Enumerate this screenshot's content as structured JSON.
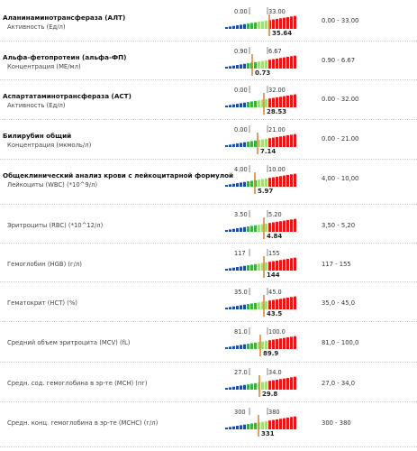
{
  "colors": {
    "low": "#1f4e9b",
    "normal": "#3fae3f",
    "normal_light": "#a7dc7a",
    "high": "#e01818",
    "marker": "#d9893a"
  },
  "rows": [
    {
      "name": "Аланинаминотрансфераза (АЛТ)",
      "label": "Активность (Ед/л)",
      "low": "0.00",
      "high": "33.00",
      "value": "35.64",
      "range": "0.00 - 33.00",
      "fraction": 0.6
    },
    {
      "name": "Альфа-фетопротеин (альфа-ФП)",
      "label": "Концентрация (МЕ/мл)",
      "low": "0.90",
      "high": "6.67",
      "value": "0.73",
      "range": "0.90 - 6.67",
      "fraction": 0.36
    },
    {
      "name": "Аспартатаминотрансфераза (АСТ)",
      "label": "Активность (Ед/л)",
      "low": "0.00",
      "high": "32.00",
      "value": "28.53",
      "range": "0.00 - 32.00",
      "fraction": 0.52
    },
    {
      "name": "Билирубин общий",
      "label": "Концентрация (мкмоль/л)",
      "low": "0.00",
      "high": "21.00",
      "value": "7.14",
      "range": "0.00 - 21.00",
      "fraction": 0.44
    },
    {
      "name": "Общеклинический анализ крови с лейкоцитарной формулой",
      "label": "Лейкоциты (WBC) (*10^9/л)",
      "low": "4.00",
      "high": "10.00",
      "value": "5.97",
      "range": "4,00 - 10,00",
      "fraction": 0.4
    },
    {
      "name": "",
      "label": "Эритроциты (RBC) (*10^12/л)",
      "low": "3.50",
      "high": "5.20",
      "value": "4.84",
      "range": "3,50 - 5,20",
      "fraction": 0.53
    },
    {
      "name": "",
      "label": "Гемоглобин (HGB) (г/л)",
      "low": "117",
      "high": "155",
      "value": "144",
      "range": "117 - 155",
      "fraction": 0.52
    },
    {
      "name": "",
      "label": "Гематокрит (HCT) (%)",
      "low": "35.0",
      "high": "45.0",
      "value": "43.5",
      "range": "35,0 - 45,0",
      "fraction": 0.53
    },
    {
      "name": "",
      "label": "Средний объем эритроцита (MCV) (fL)",
      "low": "81.0",
      "high": "100.0",
      "value": "89.9",
      "range": "81,0 - 100,0",
      "fraction": 0.48
    },
    {
      "name": "",
      "label": "Средн. сод. гемоглобина в эр-те (MCH) (пг)",
      "low": "27.0",
      "high": "34.0",
      "value": "29.8",
      "range": "27,0 - 34,0",
      "fraction": 0.46
    },
    {
      "name": "",
      "label": "Средн. конц. гемоглобина в эр-те (MCHC) (г/л)",
      "low": "300",
      "high": "380",
      "value": "331",
      "range": "300 - 380",
      "fraction": 0.45
    }
  ]
}
